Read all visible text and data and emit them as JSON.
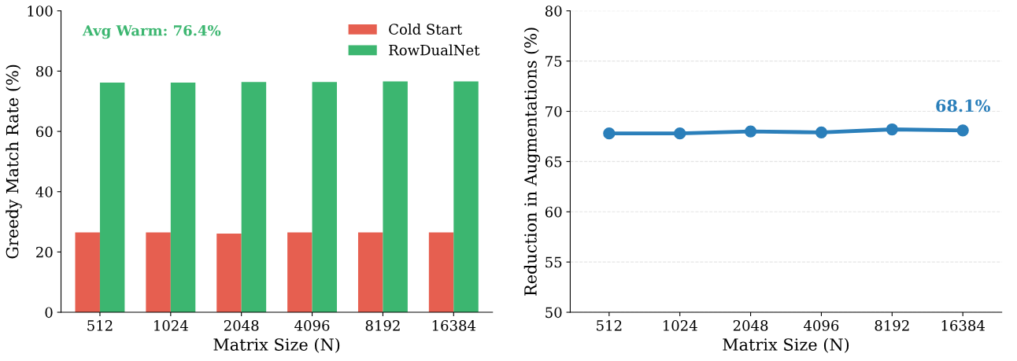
{
  "chart_data": [
    {
      "type": "bar",
      "categories": [
        "512",
        "1024",
        "2048",
        "4096",
        "8192",
        "16384"
      ],
      "xlabel": "Matrix Size (N)",
      "ylabel": "Greedy Match Rate (%)",
      "ylim": [
        0,
        100
      ],
      "yticks": [
        0,
        20,
        40,
        60,
        80,
        100
      ],
      "grid": false,
      "legend": "top right",
      "series": [
        {
          "name": "Cold Start",
          "color": "#e65f50",
          "values": [
            26.5,
            26.5,
            26.1,
            26.5,
            26.5,
            26.5
          ]
        },
        {
          "name": "RowDualNet",
          "color": "#3cb670",
          "values": [
            76.2,
            76.2,
            76.4,
            76.4,
            76.6,
            76.6
          ]
        }
      ],
      "annotations": [
        "Avg Warm: 76.4%"
      ]
    },
    {
      "type": "line",
      "categories": [
        "512",
        "1024",
        "2048",
        "4096",
        "8192",
        "16384"
      ],
      "xlabel": "Matrix Size (N)",
      "ylabel": "Reduction in Augmentations (%)",
      "ylim": [
        50,
        80
      ],
      "yticks": [
        50,
        55,
        60,
        65,
        70,
        75,
        80
      ],
      "grid": "y",
      "marker": "circle",
      "line_style": "solid",
      "series": [
        {
          "color": "#2b7fba",
          "values": [
            67.8,
            67.8,
            68.0,
            67.9,
            68.2,
            68.1
          ]
        }
      ],
      "annotations": [
        {
          "text": "68.1%",
          "x": "16384",
          "y": 68.1
        }
      ]
    }
  ]
}
